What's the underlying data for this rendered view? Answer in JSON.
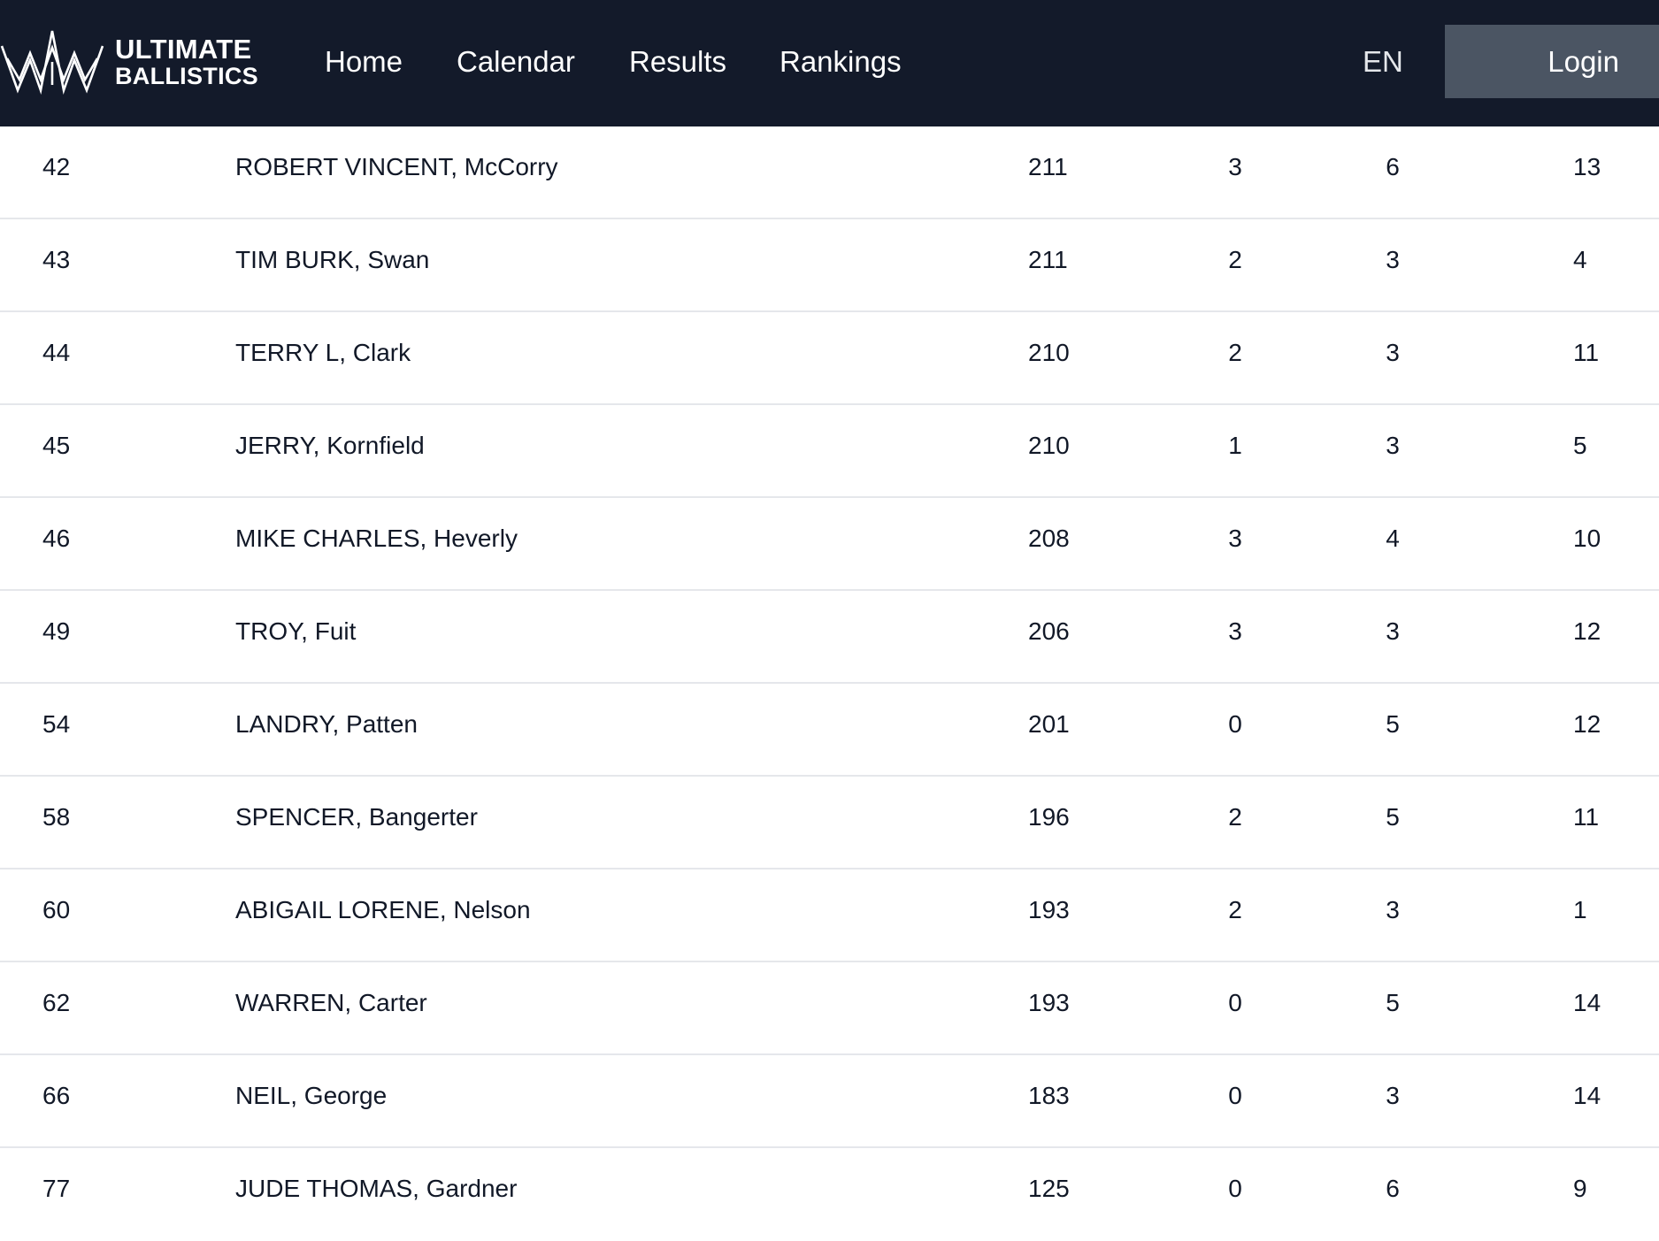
{
  "brand": {
    "line1": "ULTIMATE",
    "line2": "BALLISTICS",
    "logo_icon": "crown-logo-icon"
  },
  "nav": {
    "links": [
      "Home",
      "Calendar",
      "Results",
      "Rankings"
    ],
    "language": "EN",
    "login_label": "Login"
  },
  "colors": {
    "navbar_bg": "#131a2a",
    "login_bg": "#4b5563",
    "row_divider": "#e5e7eb"
  },
  "rankings": {
    "rows": [
      {
        "rank": "42",
        "name": "ROBERT VINCENT, McCorry",
        "score": "211",
        "a": "3",
        "b": "6",
        "c": "13"
      },
      {
        "rank": "43",
        "name": "TIM BURK, Swan",
        "score": "211",
        "a": "2",
        "b": "3",
        "c": "4"
      },
      {
        "rank": "44",
        "name": "TERRY L, Clark",
        "score": "210",
        "a": "2",
        "b": "3",
        "c": "11"
      },
      {
        "rank": "45",
        "name": "JERRY, Kornfield",
        "score": "210",
        "a": "1",
        "b": "3",
        "c": "5"
      },
      {
        "rank": "46",
        "name": "MIKE CHARLES, Heverly",
        "score": "208",
        "a": "3",
        "b": "4",
        "c": "10"
      },
      {
        "rank": "49",
        "name": "TROY, Fuit",
        "score": "206",
        "a": "3",
        "b": "3",
        "c": "12"
      },
      {
        "rank": "54",
        "name": "LANDRY, Patten",
        "score": "201",
        "a": "0",
        "b": "5",
        "c": "12"
      },
      {
        "rank": "58",
        "name": "SPENCER, Bangerter",
        "score": "196",
        "a": "2",
        "b": "5",
        "c": "11"
      },
      {
        "rank": "60",
        "name": "ABIGAIL LORENE, Nelson",
        "score": "193",
        "a": "2",
        "b": "3",
        "c": "1"
      },
      {
        "rank": "62",
        "name": "WARREN, Carter",
        "score": "193",
        "a": "0",
        "b": "5",
        "c": "14"
      },
      {
        "rank": "66",
        "name": "NEIL, George",
        "score": "183",
        "a": "0",
        "b": "3",
        "c": "14"
      },
      {
        "rank": "77",
        "name": "JUDE THOMAS, Gardner",
        "score": "125",
        "a": "0",
        "b": "6",
        "c": "9"
      }
    ]
  }
}
